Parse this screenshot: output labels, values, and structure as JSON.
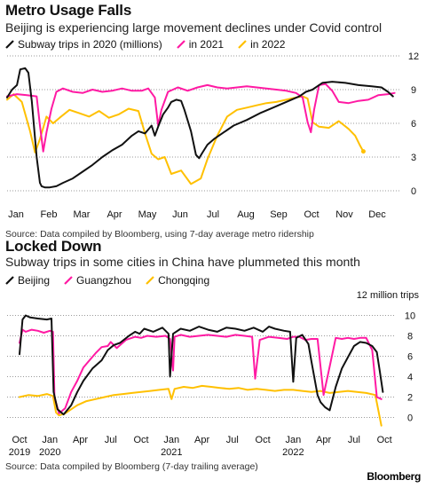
{
  "chart_data": [
    {
      "type": "line",
      "title": "Metro Usage Falls",
      "subtitle": "Beijing is experiencing large movement declines under Covid control",
      "source": "Source: Data compiled by Bloomberg, using 7-day average metro ridership",
      "x_ticks": [
        "Jan",
        "Feb",
        "Mar",
        "Apr",
        "May",
        "Jun",
        "Jul",
        "Aug",
        "Sep",
        "Oct",
        "Nov",
        "Dec"
      ],
      "y_ticks": [
        "0",
        "3",
        "6",
        "9",
        "12"
      ],
      "ylim": [
        0,
        12
      ],
      "xlim": [
        0,
        12
      ],
      "legend_position": "top",
      "grid": "horizontal dotted",
      "series": [
        {
          "name": "Subway trips in 2020 (millions)",
          "color": "#111111",
          "x": [
            0.0,
            0.15,
            0.3,
            0.4,
            0.55,
            0.65,
            0.75,
            0.9,
            1.0,
            1.05,
            1.15,
            1.3,
            1.5,
            1.7,
            2.0,
            2.3,
            2.6,
            2.9,
            3.2,
            3.5,
            3.8,
            4.0,
            4.2,
            4.4,
            4.5,
            4.6,
            4.75,
            4.9,
            5.0,
            5.15,
            5.3,
            5.4,
            5.6,
            5.75,
            5.85,
            5.95,
            6.1,
            6.3,
            6.6,
            6.9,
            7.3,
            7.7,
            8.1,
            8.5,
            8.9,
            9.1,
            9.3,
            9.6,
            9.9,
            10.3,
            10.7,
            11.1,
            11.4,
            11.6,
            11.75
          ],
          "values": [
            8.3,
            9.0,
            9.4,
            10.8,
            10.9,
            10.5,
            8.0,
            3.0,
            0.7,
            0.4,
            0.3,
            0.3,
            0.4,
            0.7,
            1.1,
            1.7,
            2.3,
            3.0,
            3.6,
            4.1,
            4.9,
            5.3,
            5.1,
            5.8,
            4.9,
            5.7,
            6.8,
            7.4,
            7.9,
            8.1,
            8.0,
            7.2,
            5.3,
            3.2,
            2.9,
            3.4,
            4.1,
            4.6,
            5.2,
            5.8,
            6.3,
            6.9,
            7.4,
            7.9,
            8.4,
            8.8,
            9.0,
            9.6,
            9.7,
            9.6,
            9.4,
            9.3,
            9.2,
            8.8,
            8.4
          ]
        },
        {
          "name": "in 2021",
          "color": "#ff1aa3",
          "x": [
            0.0,
            0.3,
            0.6,
            0.9,
            1.0,
            1.1,
            1.2,
            1.35,
            1.5,
            1.7,
            2.0,
            2.3,
            2.6,
            2.9,
            3.2,
            3.5,
            3.8,
            4.1,
            4.3,
            4.5,
            4.6,
            4.7,
            4.9,
            5.2,
            5.5,
            5.8,
            6.1,
            6.4,
            6.7,
            7.0,
            7.3,
            7.6,
            7.9,
            8.2,
            8.5,
            8.8,
            9.0,
            9.15,
            9.25,
            9.35,
            9.5,
            9.7,
            9.9,
            10.1,
            10.4,
            10.7,
            11.0,
            11.3,
            11.6,
            11.8
          ],
          "values": [
            8.4,
            8.6,
            8.5,
            8.4,
            5.8,
            3.5,
            5.2,
            7.3,
            8.8,
            9.1,
            8.8,
            8.7,
            9.0,
            8.8,
            8.9,
            9.1,
            8.9,
            8.9,
            9.1,
            8.3,
            5.8,
            7.2,
            8.8,
            9.2,
            8.9,
            9.2,
            9.4,
            9.2,
            9.1,
            9.2,
            9.3,
            9.2,
            9.1,
            9.0,
            8.9,
            8.7,
            8.3,
            6.1,
            5.2,
            7.2,
            9.4,
            9.5,
            8.9,
            7.9,
            7.8,
            8.0,
            8.1,
            8.5,
            8.6,
            8.7
          ]
        },
        {
          "name": "in 2022",
          "color": "#ffc000",
          "x": [
            0.0,
            0.2,
            0.45,
            0.7,
            0.85,
            1.0,
            1.2,
            1.4,
            1.6,
            1.9,
            2.2,
            2.5,
            2.8,
            3.1,
            3.4,
            3.7,
            4.0,
            4.2,
            4.4,
            4.6,
            4.8,
            5.0,
            5.3,
            5.6,
            5.9,
            6.1,
            6.4,
            6.7,
            7.0,
            7.3,
            7.6,
            7.9,
            8.2,
            8.5,
            8.8,
            9.0,
            9.15,
            9.3,
            9.5,
            9.8,
            10.1,
            10.4,
            10.6,
            10.75,
            10.85
          ],
          "values": [
            8.1,
            8.6,
            7.9,
            5.3,
            3.4,
            4.6,
            6.6,
            6.0,
            6.5,
            7.2,
            6.9,
            6.6,
            7.1,
            6.5,
            6.8,
            7.3,
            7.1,
            5.1,
            3.3,
            2.8,
            3.0,
            1.5,
            1.8,
            0.6,
            1.1,
            2.8,
            4.9,
            6.6,
            7.2,
            7.4,
            7.6,
            7.8,
            7.9,
            8.1,
            8.3,
            8.4,
            8.2,
            6.1,
            5.7,
            5.6,
            6.2,
            5.5,
            4.9,
            4.0,
            3.5
          ]
        }
      ]
    },
    {
      "type": "line",
      "title": "Locked Down",
      "subtitle": "Subway trips in some cities in China have plummeted this month",
      "source": "Source: Data compiled by Bloomberg (7-day trailing average)",
      "y_unit_label": "12 million trips",
      "y_ticks": [
        "0",
        "2",
        "4",
        "6",
        "8",
        "10"
      ],
      "ylim": [
        -1,
        11
      ],
      "x_ticks": [
        {
          "line1": "Oct",
          "line2": "2019"
        },
        {
          "line1": "Jan",
          "line2": "2020"
        },
        {
          "line1": "Apr",
          "line2": ""
        },
        {
          "line1": "Jul",
          "line2": ""
        },
        {
          "line1": "Oct",
          "line2": ""
        },
        {
          "line1": "Jan",
          "line2": "2021"
        },
        {
          "line1": "Apr",
          "line2": ""
        },
        {
          "line1": "Jul",
          "line2": ""
        },
        {
          "line1": "Oct",
          "line2": ""
        },
        {
          "line1": "Jan",
          "line2": "2022"
        },
        {
          "line1": "Apr",
          "line2": ""
        },
        {
          "line1": "Jul",
          "line2": ""
        },
        {
          "line1": "Oct",
          "line2": ""
        }
      ],
      "xlim": [
        0,
        12.2
      ],
      "legend_position": "top",
      "grid": "horizontal dotted",
      "series": [
        {
          "name": "Beijing",
          "color": "#111111",
          "x": [
            0.0,
            0.1,
            0.2,
            0.35,
            0.6,
            0.9,
            1.05,
            1.12,
            1.25,
            1.45,
            1.7,
            1.9,
            2.1,
            2.4,
            2.7,
            2.9,
            3.1,
            3.3,
            3.6,
            3.8,
            3.95,
            4.1,
            4.4,
            4.7,
            4.9,
            4.95,
            5.05,
            5.3,
            5.6,
            5.9,
            6.2,
            6.5,
            6.8,
            7.1,
            7.4,
            7.7,
            8.0,
            8.2,
            8.4,
            8.7,
            8.9,
            9.0,
            9.1,
            9.3,
            9.5,
            9.6,
            9.8,
            9.9,
            10.05,
            10.2,
            10.4,
            10.6,
            10.8,
            11.0,
            11.2,
            11.4,
            11.6,
            11.75,
            11.85,
            11.95
          ],
          "values": [
            6.2,
            9.6,
            10.0,
            9.8,
            9.7,
            9.6,
            9.7,
            2.5,
            0.8,
            0.3,
            1.2,
            2.5,
            3.6,
            4.8,
            5.6,
            6.6,
            7.1,
            7.3,
            8.0,
            8.4,
            8.2,
            8.7,
            8.4,
            8.8,
            8.2,
            4.0,
            8.2,
            8.7,
            8.5,
            8.9,
            8.6,
            8.4,
            8.8,
            8.7,
            8.5,
            8.8,
            8.4,
            8.9,
            8.7,
            8.5,
            8.4,
            3.5,
            7.8,
            8.1,
            7.2,
            5.5,
            2.2,
            1.5,
            1.0,
            0.7,
            3.0,
            4.8,
            5.9,
            7.0,
            7.4,
            7.3,
            7.0,
            6.4,
            4.5,
            2.5
          ]
        },
        {
          "name": "Guangzhou",
          "color": "#ff1aa3",
          "x": [
            0.0,
            0.1,
            0.2,
            0.4,
            0.6,
            0.8,
            1.0,
            1.1,
            1.15,
            1.3,
            1.5,
            1.7,
            1.9,
            2.1,
            2.3,
            2.5,
            2.7,
            2.9,
            3.0,
            3.2,
            3.5,
            3.8,
            4.0,
            4.2,
            4.5,
            4.8,
            4.95,
            5.05,
            5.1,
            5.3,
            5.6,
            5.9,
            6.2,
            6.5,
            6.8,
            7.1,
            7.4,
            7.65,
            7.75,
            7.9,
            8.2,
            8.5,
            8.8,
            9.0,
            9.2,
            9.4,
            9.6,
            9.8,
            10.0,
            10.2,
            10.4,
            10.6,
            10.8,
            11.0,
            11.2,
            11.4,
            11.6,
            11.75,
            11.9
          ],
          "values": [
            7.3,
            8.6,
            8.4,
            8.6,
            8.5,
            8.3,
            8.5,
            8.4,
            2.0,
            0.4,
            0.9,
            2.5,
            3.6,
            4.9,
            5.6,
            6.3,
            6.9,
            7.0,
            7.4,
            6.8,
            7.6,
            7.9,
            7.8,
            8.0,
            7.9,
            8.0,
            7.7,
            4.6,
            7.9,
            8.1,
            7.9,
            8.0,
            8.1,
            8.0,
            7.9,
            8.1,
            8.0,
            7.9,
            3.8,
            7.6,
            7.9,
            7.8,
            7.7,
            7.9,
            7.9,
            7.6,
            7.7,
            7.7,
            2.2,
            5.0,
            7.8,
            7.7,
            7.8,
            7.7,
            7.8,
            7.8,
            6.6,
            2.0,
            1.8
          ]
        },
        {
          "name": "Chongqing",
          "color": "#ffc000",
          "x": [
            0.0,
            0.3,
            0.6,
            0.9,
            1.1,
            1.2,
            1.3,
            1.5,
            1.7,
            1.9,
            2.2,
            2.5,
            2.8,
            3.1,
            3.4,
            3.7,
            4.0,
            4.3,
            4.6,
            4.9,
            5.0,
            5.1,
            5.4,
            5.7,
            6.0,
            6.3,
            6.6,
            6.9,
            7.2,
            7.5,
            7.8,
            8.1,
            8.4,
            8.7,
            9.0,
            9.3,
            9.6,
            9.9,
            10.2,
            10.5,
            10.8,
            11.1,
            11.4,
            11.7,
            11.9
          ],
          "values": [
            2.0,
            2.2,
            2.1,
            2.3,
            2.1,
            0.5,
            0.2,
            0.4,
            0.8,
            1.2,
            1.6,
            1.8,
            2.0,
            2.2,
            2.3,
            2.4,
            2.5,
            2.6,
            2.7,
            2.8,
            1.8,
            2.8,
            3.0,
            2.9,
            3.1,
            3.0,
            2.9,
            2.8,
            2.9,
            2.7,
            2.8,
            2.7,
            2.6,
            2.7,
            2.7,
            2.6,
            2.5,
            2.6,
            2.4,
            2.5,
            2.6,
            2.5,
            2.4,
            2.2,
            -0.8
          ]
        }
      ]
    },
    {
      "type": "brand",
      "logo_text": "Bloomberg"
    }
  ]
}
